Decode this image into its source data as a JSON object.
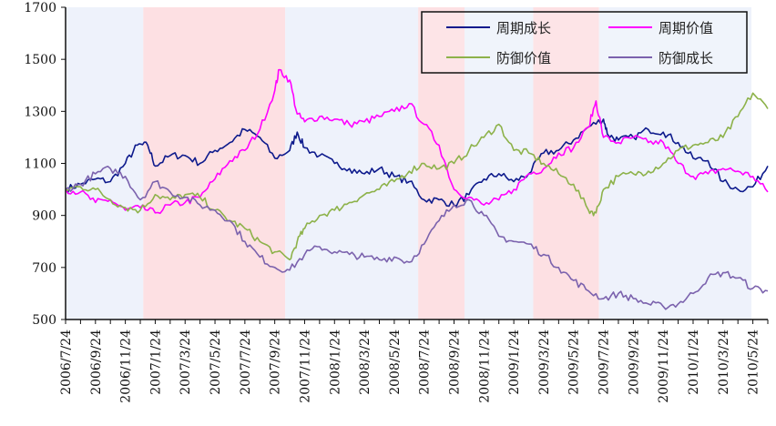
{
  "chart_data": {
    "type": "line",
    "title": "",
    "xlabel": "",
    "ylabel": "",
    "ylim": [
      500,
      1700
    ],
    "y_ticks": [
      500,
      700,
      900,
      1100,
      1300,
      1500,
      1700
    ],
    "x_unit": "months since 2006/7/24",
    "xlim": [
      0,
      47
    ],
    "x_tick_labels": [
      "2006/7/24",
      "2006/9/24",
      "2006/11/24",
      "2007/1/24",
      "2007/3/24",
      "2007/5/24",
      "2007/7/24",
      "2007/9/24",
      "2007/11/24",
      "2008/1/24",
      "2008/3/24",
      "2008/5/24",
      "2008/7/24",
      "2008/9/24",
      "2008/11/24",
      "2009/1/24",
      "2009/3/24",
      "2009/5/24",
      "2009/7/24",
      "2009/9/24",
      "2009/11/24",
      "2010/1/24",
      "2010/3/24",
      "2010/5/24"
    ],
    "legend_position": "top-right",
    "background_bands": [
      {
        "from": 0,
        "to": 5.2,
        "color": "#eef2fb"
      },
      {
        "from": 5.2,
        "to": 14.7,
        "color": "#fde0e3"
      },
      {
        "from": 14.7,
        "to": 23.6,
        "color": "#eef2fb"
      },
      {
        "from": 23.6,
        "to": 26.7,
        "color": "#fde0e3"
      },
      {
        "from": 26.7,
        "to": 31.3,
        "color": "#eef2fb"
      },
      {
        "from": 31.3,
        "to": 35.7,
        "color": "#fde0e3"
      },
      {
        "from": 35.7,
        "to": 45.9,
        "color": "#eef2fb"
      }
    ],
    "series": [
      {
        "name": "周期成长",
        "color": "#0d1a8c",
        "x": [
          0,
          1,
          2,
          3,
          4,
          4.8,
          5.5,
          6,
          7,
          8,
          9,
          10,
          11,
          12,
          13,
          14,
          15,
          15.5,
          16,
          17,
          18,
          19,
          20,
          21,
          22,
          23,
          24,
          25,
          26,
          27,
          28,
          29,
          30,
          31,
          32,
          33,
          34,
          35,
          36,
          36.3,
          37,
          38,
          39,
          40,
          41,
          42,
          43,
          44,
          45,
          46,
          47
        ],
        "values": [
          1000,
          1020,
          1040,
          1030,
          1100,
          1170,
          1170,
          1090,
          1130,
          1130,
          1100,
          1150,
          1180,
          1230,
          1200,
          1120,
          1150,
          1220,
          1160,
          1130,
          1100,
          1080,
          1060,
          1080,
          1050,
          1030,
          960,
          960,
          940,
          980,
          1040,
          1060,
          1030,
          1060,
          1140,
          1150,
          1190,
          1240,
          1270,
          1210,
          1190,
          1200,
          1230,
          1220,
          1180,
          1120,
          1110,
          1030,
          1000,
          1010,
          1090
        ]
      },
      {
        "name": "周期价值",
        "color": "#ff00ff",
        "x": [
          0,
          1,
          2,
          3,
          4,
          5,
          6,
          7,
          8,
          9,
          10,
          11,
          12,
          13,
          14,
          14.3,
          15,
          15.5,
          16,
          17,
          18,
          19,
          20,
          21,
          22,
          23,
          24,
          25,
          26,
          27,
          28,
          29,
          30,
          31,
          32,
          33,
          34,
          35,
          35.5,
          36,
          37,
          38,
          39,
          40,
          41,
          42,
          43,
          44,
          45,
          46,
          47
        ],
        "values": [
          1000,
          990,
          950,
          960,
          920,
          930,
          910,
          940,
          950,
          970,
          1040,
          1110,
          1150,
          1230,
          1380,
          1460,
          1420,
          1290,
          1260,
          1280,
          1270,
          1250,
          1260,
          1280,
          1300,
          1330,
          1250,
          1170,
          1000,
          970,
          940,
          960,
          1000,
          1060,
          1080,
          1140,
          1160,
          1240,
          1340,
          1200,
          1180,
          1200,
          1180,
          1180,
          1100,
          1050,
          1060,
          1080,
          1070,
          1050,
          990
        ]
      },
      {
        "name": "防御价值",
        "color": "#8db24a",
        "x": [
          0,
          1,
          2,
          3,
          4,
          5,
          6,
          7,
          8,
          9,
          10,
          11,
          12,
          13,
          14,
          15,
          15.5,
          16,
          17,
          18,
          19,
          20,
          21,
          22,
          23,
          24,
          25,
          26,
          27,
          28,
          29,
          30,
          31,
          32,
          33,
          34,
          35,
          35.5,
          36,
          37,
          38,
          39,
          40,
          41,
          42,
          43,
          44,
          45,
          46,
          47
        ],
        "values": [
          1000,
          1010,
          1000,
          960,
          930,
          920,
          980,
          960,
          980,
          970,
          920,
          880,
          850,
          800,
          760,
          730,
          800,
          850,
          900,
          920,
          950,
          980,
          1000,
          1030,
          1070,
          1100,
          1080,
          1100,
          1150,
          1200,
          1250,
          1150,
          1140,
          1100,
          1060,
          1020,
          920,
          910,
          1000,
          1050,
          1060,
          1070,
          1100,
          1150,
          1170,
          1180,
          1200,
          1280,
          1370,
          1310
        ]
      },
      {
        "name": "防御成长",
        "color": "#7b62ad",
        "x": [
          0,
          1,
          2,
          3,
          4,
          5,
          6,
          7,
          8,
          9,
          10,
          11,
          12,
          13,
          14,
          15,
          16,
          17,
          18,
          19,
          20,
          21,
          22,
          23,
          24,
          25,
          26,
          27,
          28,
          29,
          30,
          31,
          32,
          33,
          34,
          35,
          36,
          37,
          38,
          39,
          40,
          41,
          42,
          43,
          44,
          45,
          46,
          47
        ],
        "values": [
          1000,
          1020,
          1060,
          1080,
          1050,
          960,
          1030,
          990,
          970,
          940,
          920,
          880,
          800,
          740,
          700,
          690,
          750,
          780,
          760,
          750,
          740,
          730,
          740,
          720,
          790,
          880,
          940,
          960,
          900,
          820,
          800,
          790,
          750,
          700,
          650,
          610,
          580,
          600,
          580,
          560,
          550,
          560,
          600,
          660,
          680,
          660,
          620,
          610
        ]
      }
    ]
  }
}
